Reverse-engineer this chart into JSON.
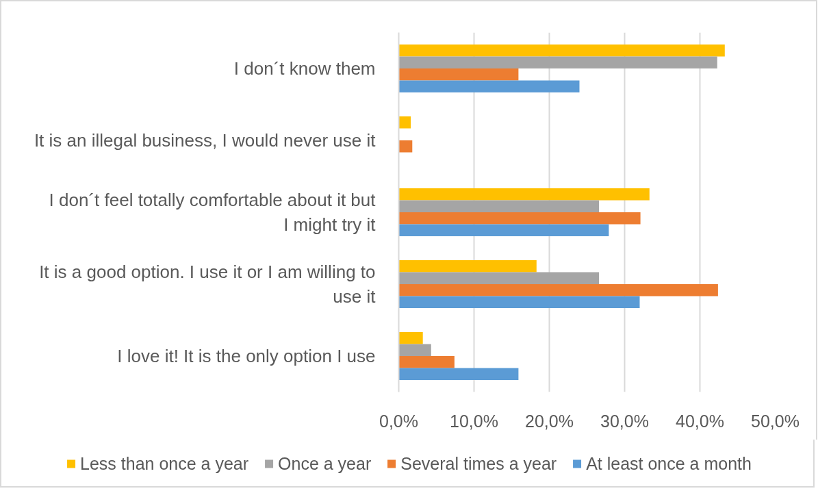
{
  "chart_data": {
    "type": "bar",
    "orientation": "horizontal",
    "categories": [
      "I don´t know them",
      "It is an illegal business, I would never use it",
      "I don´t feel totally comfortable about it but\nI might try it",
      "It is a good option. I use it or I am willing to\nuse it",
      "I love it! It is the only option I use"
    ],
    "series": [
      {
        "name": "Less than once a year",
        "color": "#ffc000",
        "values": [
          43.3,
          1.6,
          33.3,
          18.3,
          3.2
        ]
      },
      {
        "name": "Once a year",
        "color": "#a5a5a5",
        "values": [
          42.3,
          null,
          26.6,
          26.6,
          4.3
        ]
      },
      {
        "name": "Several times a year",
        "color": "#ed7d31",
        "values": [
          15.9,
          1.8,
          32.1,
          42.4,
          7.4
        ]
      },
      {
        "name": "At least once a month",
        "color": "#5b9bd5",
        "values": [
          24.0,
          null,
          27.9,
          32.0,
          15.9
        ]
      }
    ],
    "xlim": [
      0,
      50
    ],
    "xticks": [
      {
        "value": 0,
        "label": "0,0%"
      },
      {
        "value": 10,
        "label": "10,0%"
      },
      {
        "value": 20,
        "label": "20,0%"
      },
      {
        "value": 30,
        "label": "30,0%"
      },
      {
        "value": 40,
        "label": "40,0%"
      },
      {
        "value": 50,
        "label": "50,0%"
      }
    ],
    "grid": "x",
    "legend": "bottom"
  }
}
